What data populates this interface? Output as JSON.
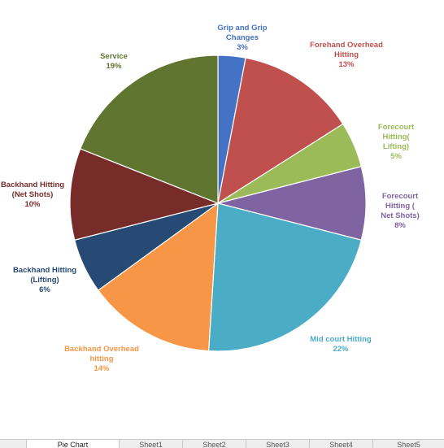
{
  "chart_data": {
    "type": "pie",
    "categories": [
      "Grip and Grip Changes",
      "Forehand Overhead Hitting",
      "Forecourt Hitting( Lifting)",
      "Forecourt Hitting ( Net Shots)",
      "Mid court Hitting",
      "Backhand Overhead hitting",
      "Backhand Hitting (Lifting)",
      "Backhand Hitting (Net Shots)",
      "Service"
    ],
    "values": [
      3,
      13,
      5,
      8,
      22,
      14,
      6,
      10,
      19
    ],
    "slice_labels": [
      {
        "name": "Grip and Grip\nChanges",
        "pct": "3%"
      },
      {
        "name": "Forehand Overhead\nHitting",
        "pct": "13%"
      },
      {
        "name": "Forecourt Hitting(\nLifting)",
        "pct": "5%"
      },
      {
        "name": "Forecourt Hitting (\nNet Shots)",
        "pct": "8%"
      },
      {
        "name": "Mid court Hitting",
        "pct": "22%"
      },
      {
        "name": "Backhand Overhead\nhitting",
        "pct": "14%"
      },
      {
        "name": "Backhand Hitting\n(Lifting)",
        "pct": "6%"
      },
      {
        "name": "Backhand Hitting\n(Net Shots)",
        "pct": "10%"
      },
      {
        "name": "Service",
        "pct": "19%"
      }
    ],
    "colors": [
      "#4472c4",
      "#c0504d",
      "#9bbb59",
      "#8064a2",
      "#4bacc6",
      "#f79646",
      "#264a73",
      "#772c2a",
      "#5f7530"
    ],
    "label_colors": [
      "#4472c4",
      "#c0504d",
      "#9bbb59",
      "#8064a2",
      "#4bacc6",
      "#f79646",
      "#264a73",
      "#772c2a",
      "#5f7530"
    ],
    "start_angle_deg": 0,
    "direction": "clockwise",
    "legend": "none"
  },
  "sheet_tabs": [
    "Pie Chart",
    "Sheet1",
    "Sheet2",
    "Sheet3",
    "Sheet4",
    "Sheet5"
  ],
  "active_tab": 0
}
